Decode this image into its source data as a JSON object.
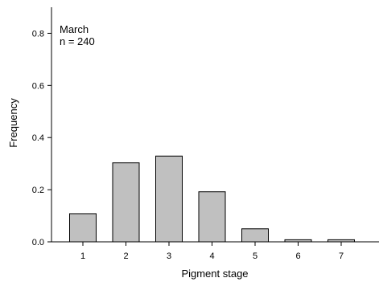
{
  "chart_data": {
    "type": "bar",
    "categories": [
      "1",
      "2",
      "3",
      "4",
      "5",
      "6",
      "7"
    ],
    "values": [
      0.108,
      0.303,
      0.329,
      0.192,
      0.05,
      0.008,
      0.008
    ],
    "xlabel": "Pigment stage",
    "ylabel": "Frequency",
    "ylim": [
      0,
      0.9
    ],
    "yticks": [
      "0.0",
      "0.2",
      "0.4",
      "0.6",
      "0.8"
    ],
    "annotation": {
      "line1": "March",
      "line2": "n = 240"
    },
    "bar_color": "#c0c0c0",
    "bar_edge_color": "#000000",
    "grid": false
  }
}
